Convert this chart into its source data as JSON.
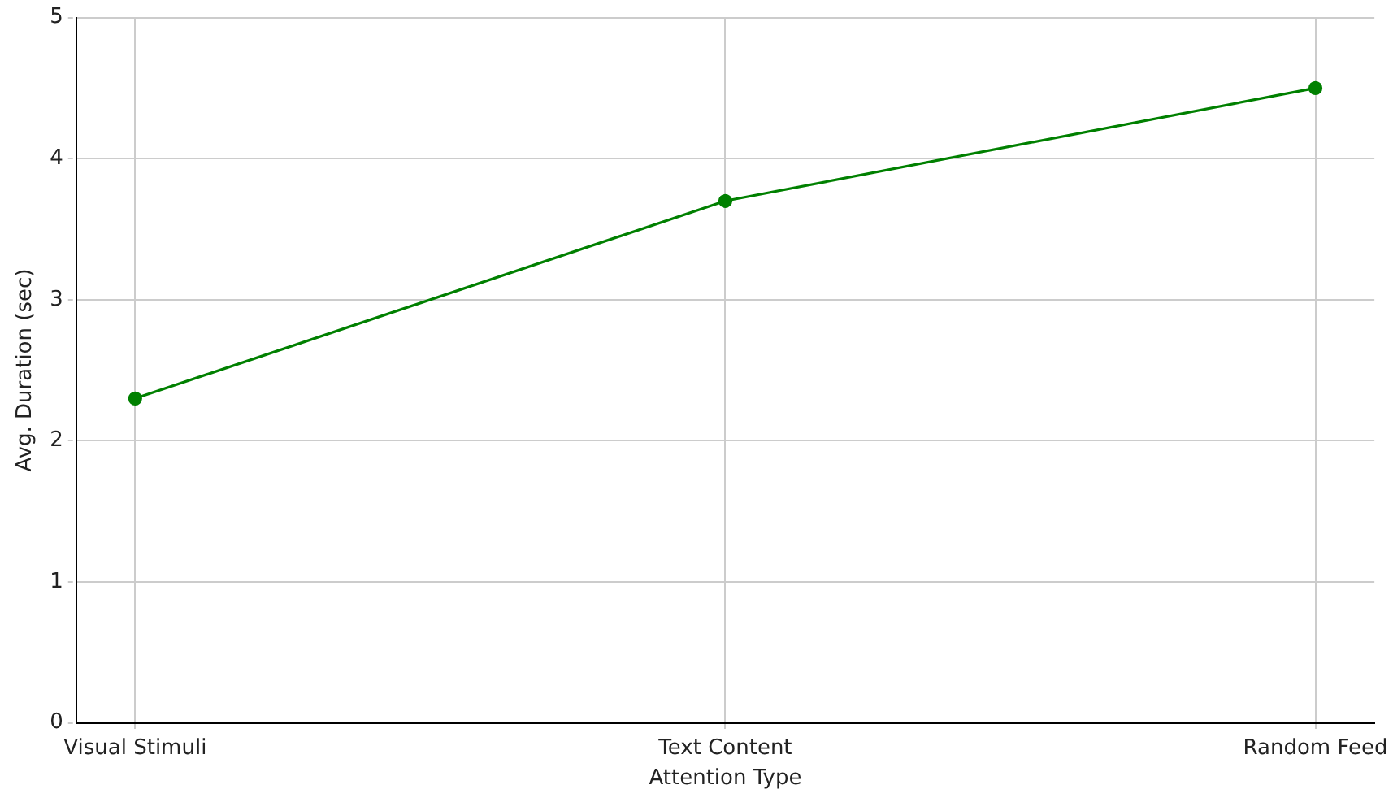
{
  "chart_data": {
    "type": "line",
    "categories": [
      "Visual Stimuli",
      "Text Content",
      "Random Feed"
    ],
    "values": [
      2.3,
      3.7,
      4.5
    ],
    "color": "#008000",
    "xlabel": "Attention Type",
    "ylabel": "Avg. Duration (sec)",
    "ylim": [
      0,
      5
    ],
    "yticks": [
      0,
      1,
      2,
      3,
      4,
      5
    ],
    "grid": true,
    "legend": false,
    "marker": "circle",
    "line_style": "solid"
  }
}
